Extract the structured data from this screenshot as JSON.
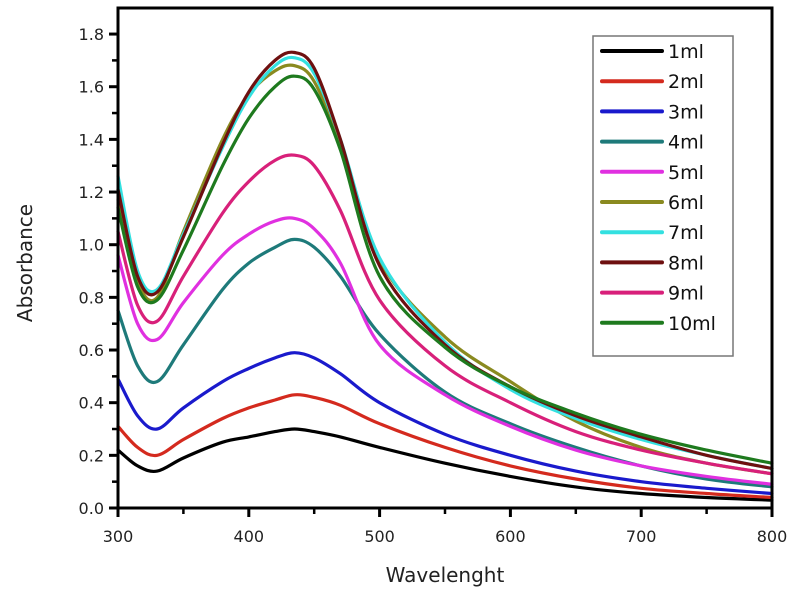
{
  "chart_data": {
    "type": "line",
    "title": "",
    "xlabel": "Wavelenght",
    "ylabel": "Absorbance",
    "xlim": [
      300,
      800
    ],
    "ylim": [
      0.0,
      1.9
    ],
    "xticks": [
      300,
      400,
      500,
      600,
      700,
      800
    ],
    "xtick_labels": [
      "300",
      "400",
      "500",
      "600",
      "700",
      "800"
    ],
    "yticks": [
      0.0,
      0.2,
      0.4,
      0.6,
      0.8,
      1.0,
      1.2,
      1.4,
      1.6,
      1.8
    ],
    "ytick_labels": [
      "0.0",
      "0.2",
      "0.4",
      "0.6",
      "0.8",
      "1.0",
      "1.2",
      "1.4",
      "1.6",
      "1.8"
    ],
    "grid": false,
    "legend_position": "top-right",
    "x": [
      300,
      315,
      330,
      350,
      380,
      400,
      420,
      435,
      450,
      470,
      500,
      550,
      600,
      650,
      700,
      750,
      800
    ],
    "series": [
      {
        "name": "1ml",
        "color": "#000000",
        "values": [
          0.22,
          0.16,
          0.14,
          0.19,
          0.25,
          0.27,
          0.29,
          0.3,
          0.29,
          0.27,
          0.23,
          0.17,
          0.12,
          0.08,
          0.055,
          0.04,
          0.03
        ]
      },
      {
        "name": "2ml",
        "color": "#d42a1e",
        "values": [
          0.31,
          0.23,
          0.2,
          0.26,
          0.34,
          0.38,
          0.41,
          0.43,
          0.42,
          0.39,
          0.32,
          0.23,
          0.16,
          0.11,
          0.075,
          0.055,
          0.04
        ]
      },
      {
        "name": "3ml",
        "color": "#1a1acc",
        "values": [
          0.49,
          0.35,
          0.3,
          0.38,
          0.48,
          0.53,
          0.57,
          0.59,
          0.57,
          0.51,
          0.4,
          0.28,
          0.2,
          0.14,
          0.1,
          0.075,
          0.055
        ]
      },
      {
        "name": "4ml",
        "color": "#1e7a7a",
        "values": [
          0.75,
          0.54,
          0.48,
          0.62,
          0.83,
          0.93,
          0.99,
          1.02,
          0.99,
          0.88,
          0.66,
          0.44,
          0.32,
          0.23,
          0.16,
          0.11,
          0.08
        ]
      },
      {
        "name": "5ml",
        "color": "#e030e0",
        "values": [
          0.96,
          0.7,
          0.64,
          0.78,
          0.96,
          1.04,
          1.09,
          1.1,
          1.06,
          0.93,
          0.62,
          0.43,
          0.31,
          0.22,
          0.16,
          0.12,
          0.09
        ]
      },
      {
        "name": "6ml",
        "color": "#8a8a20",
        "values": [
          1.17,
          0.86,
          0.8,
          1.05,
          1.4,
          1.57,
          1.66,
          1.68,
          1.62,
          1.38,
          0.94,
          0.65,
          0.48,
          0.33,
          0.23,
          0.17,
          0.13
        ]
      },
      {
        "name": "7ml",
        "color": "#33e0e0",
        "values": [
          1.26,
          0.9,
          0.83,
          1.04,
          1.37,
          1.56,
          1.68,
          1.71,
          1.65,
          1.4,
          0.95,
          0.63,
          0.45,
          0.34,
          0.26,
          0.2,
          0.15
        ]
      },
      {
        "name": "8ml",
        "color": "#6e1010",
        "values": [
          1.21,
          0.88,
          0.82,
          1.03,
          1.38,
          1.58,
          1.7,
          1.73,
          1.67,
          1.4,
          0.92,
          0.62,
          0.46,
          0.35,
          0.27,
          0.2,
          0.15
        ]
      },
      {
        "name": "9ml",
        "color": "#d8207a",
        "values": [
          1.05,
          0.77,
          0.71,
          0.88,
          1.12,
          1.24,
          1.32,
          1.34,
          1.3,
          1.13,
          0.79,
          0.54,
          0.4,
          0.29,
          0.22,
          0.17,
          0.13
        ]
      },
      {
        "name": "10ml",
        "color": "#1e7a1e",
        "values": [
          1.14,
          0.84,
          0.79,
          0.98,
          1.3,
          1.48,
          1.6,
          1.64,
          1.59,
          1.36,
          0.88,
          0.61,
          0.46,
          0.36,
          0.28,
          0.22,
          0.17
        ]
      }
    ]
  }
}
